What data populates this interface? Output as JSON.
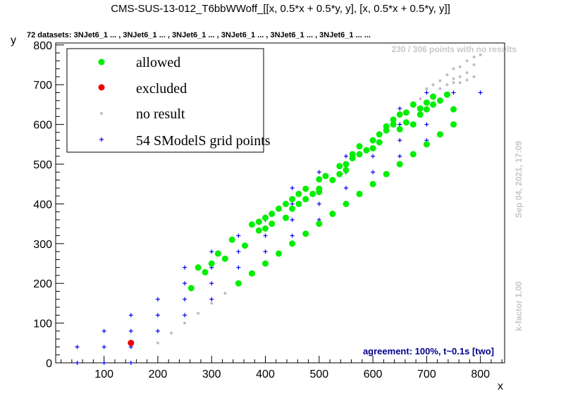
{
  "chart_data": {
    "type": "scatter",
    "title": "CMS-SUS-13-012_T6bbWWoff_[[x, 0.5*x + 0.5*y, y], [x, 0.5*x + 0.5*y, y]]",
    "subtitle": "72 datasets: 3NJet6_1 ... , 3NJet6_1 ... , 3NJet6_1 ... , 3NJet6_1 ... , 3NJet6_1 ... , 3NJet6_1 ... ...",
    "xlabel": "x",
    "ylabel": "y",
    "xlim": [
      10,
      845
    ],
    "ylim": [
      0,
      805
    ],
    "xticks": [
      100,
      200,
      300,
      400,
      500,
      600,
      700,
      800
    ],
    "yticks": [
      0,
      100,
      200,
      300,
      400,
      500,
      600,
      700,
      800
    ],
    "legend_position": "top-left",
    "no_result_note": "230 / 306 points with no results",
    "timestamp": "Sep 04, 2021, 17:09",
    "kfactor": "k-factor 1.00",
    "agreement": "agreement: 100%, t~0.1s [two]",
    "series": [
      {
        "name": "allowed",
        "color": "#00ee00",
        "marker": "dot",
        "points": [
          [
            262,
            188
          ],
          [
            275,
            240
          ],
          [
            288,
            228
          ],
          [
            300,
            250
          ],
          [
            312,
            275
          ],
          [
            325,
            262
          ],
          [
            338,
            310
          ],
          [
            350,
            200
          ],
          [
            362,
            295
          ],
          [
            375,
            225
          ],
          [
            375,
            348
          ],
          [
            388,
            355
          ],
          [
            388,
            333
          ],
          [
            400,
            250
          ],
          [
            400,
            365
          ],
          [
            400,
            338
          ],
          [
            412,
            375
          ],
          [
            412,
            350
          ],
          [
            425,
            388
          ],
          [
            425,
            275
          ],
          [
            438,
            400
          ],
          [
            438,
            365
          ],
          [
            450,
            300
          ],
          [
            450,
            412
          ],
          [
            450,
            388
          ],
          [
            462,
            425
          ],
          [
            462,
            400
          ],
          [
            475,
            325
          ],
          [
            475,
            438
          ],
          [
            475,
            412
          ],
          [
            488,
            425
          ],
          [
            500,
            438
          ],
          [
            500,
            350
          ],
          [
            500,
            462
          ],
          [
            500,
            430
          ],
          [
            512,
            470
          ],
          [
            525,
            375
          ],
          [
            525,
            460
          ],
          [
            538,
            495
          ],
          [
            538,
            475
          ],
          [
            550,
            400
          ],
          [
            550,
            500
          ],
          [
            550,
            485
          ],
          [
            562,
            525
          ],
          [
            562,
            515
          ],
          [
            575,
            425
          ],
          [
            575,
            545
          ],
          [
            575,
            525
          ],
          [
            588,
            535
          ],
          [
            600,
            450
          ],
          [
            600,
            560
          ],
          [
            600,
            540
          ],
          [
            612,
            575
          ],
          [
            612,
            555
          ],
          [
            625,
            475
          ],
          [
            625,
            595
          ],
          [
            625,
            585
          ],
          [
            638,
            612
          ],
          [
            638,
            600
          ],
          [
            650,
            500
          ],
          [
            650,
            625
          ],
          [
            650,
            588
          ],
          [
            662,
            630
          ],
          [
            662,
            605
          ],
          [
            675,
            525
          ],
          [
            675,
            650
          ],
          [
            675,
            600
          ],
          [
            688,
            640
          ],
          [
            688,
            625
          ],
          [
            700,
            550
          ],
          [
            700,
            655
          ],
          [
            700,
            638
          ],
          [
            712,
            670
          ],
          [
            712,
            650
          ],
          [
            725,
            575
          ],
          [
            725,
            660
          ],
          [
            738,
            675
          ],
          [
            750,
            600
          ],
          [
            750,
            638
          ]
        ]
      },
      {
        "name": "excluded",
        "color": "#ee0000",
        "marker": "dot",
        "points": [
          [
            150,
            50
          ]
        ]
      },
      {
        "name": "no result",
        "color": "#bfbfbf",
        "marker": "small-dot",
        "points": [
          [
            200,
            50
          ],
          [
            225,
            75
          ],
          [
            250,
            100
          ],
          [
            275,
            125
          ],
          [
            300,
            150
          ],
          [
            325,
            175
          ],
          [
            688,
            665
          ],
          [
            700,
            690
          ],
          [
            712,
            700
          ],
          [
            725,
            710
          ],
          [
            725,
            690
          ],
          [
            738,
            725
          ],
          [
            738,
            700
          ],
          [
            750,
            740
          ],
          [
            750,
            715
          ],
          [
            762,
            745
          ],
          [
            762,
            720
          ],
          [
            775,
            760
          ],
          [
            775,
            730
          ],
          [
            788,
            770
          ],
          [
            788,
            750
          ],
          [
            800,
            775
          ],
          [
            762,
            705
          ],
          [
            775,
            712
          ],
          [
            788,
            720
          ],
          [
            750,
            705
          ]
        ]
      },
      {
        "name": "54 SModelS grid points",
        "color": "#0000ee",
        "marker": "plus",
        "points": [
          [
            50,
            40
          ],
          [
            50,
            0
          ],
          [
            100,
            80
          ],
          [
            100,
            40
          ],
          [
            100,
            0
          ],
          [
            150,
            120
          ],
          [
            150,
            80
          ],
          [
            150,
            40
          ],
          [
            150,
            0
          ],
          [
            200,
            160
          ],
          [
            200,
            120
          ],
          [
            200,
            80
          ],
          [
            250,
            240
          ],
          [
            250,
            200
          ],
          [
            250,
            160
          ],
          [
            250,
            120
          ],
          [
            300,
            280
          ],
          [
            300,
            240
          ],
          [
            300,
            200
          ],
          [
            300,
            160
          ],
          [
            350,
            320
          ],
          [
            350,
            280
          ],
          [
            350,
            240
          ],
          [
            350,
            200
          ],
          [
            400,
            360
          ],
          [
            400,
            320
          ],
          [
            400,
            280
          ],
          [
            450,
            440
          ],
          [
            450,
            400
          ],
          [
            450,
            360
          ],
          [
            450,
            320
          ],
          [
            500,
            480
          ],
          [
            500,
            440
          ],
          [
            500,
            400
          ],
          [
            500,
            360
          ],
          [
            550,
            520
          ],
          [
            550,
            480
          ],
          [
            550,
            440
          ],
          [
            550,
            400
          ],
          [
            600,
            560
          ],
          [
            600,
            520
          ],
          [
            600,
            480
          ],
          [
            650,
            640
          ],
          [
            650,
            600
          ],
          [
            650,
            560
          ],
          [
            650,
            520
          ],
          [
            700,
            680
          ],
          [
            700,
            640
          ],
          [
            700,
            600
          ],
          [
            700,
            560
          ],
          [
            750,
            680
          ],
          [
            750,
            640
          ],
          [
            750,
            600
          ],
          [
            800,
            680
          ]
        ]
      }
    ]
  }
}
